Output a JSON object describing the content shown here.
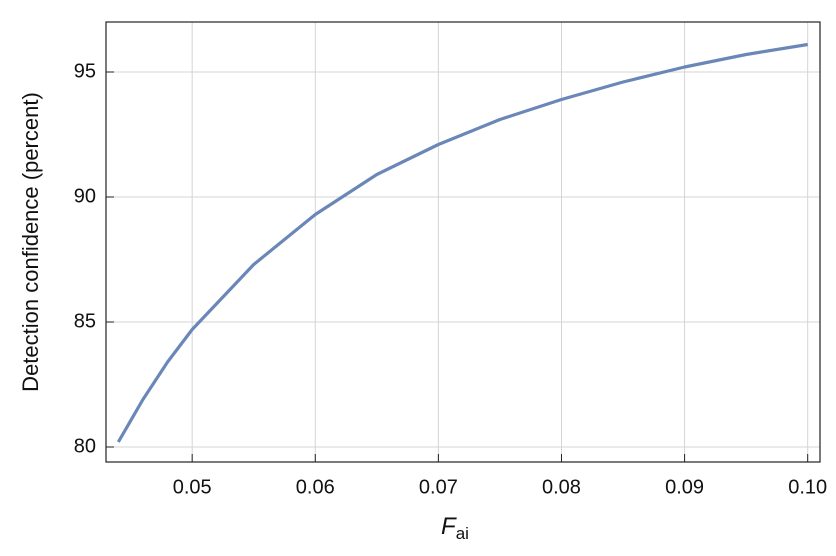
{
  "chart_data": {
    "type": "line",
    "x_label": {
      "main": "F",
      "sub": "ai"
    },
    "y_label": "Detection confidence (percent)",
    "x": [
      0.044,
      0.046,
      0.048,
      0.05,
      0.055,
      0.06,
      0.065,
      0.07,
      0.075,
      0.08,
      0.085,
      0.09,
      0.095,
      0.1
    ],
    "series": [
      {
        "color": "#6a87b8",
        "values": [
          80.2,
          81.9,
          83.4,
          84.7,
          87.3,
          89.3,
          90.9,
          92.1,
          93.1,
          93.9,
          94.6,
          95.2,
          95.7,
          96.1
        ]
      }
    ],
    "xlim": [
      0.043,
      0.101
    ],
    "ylim": [
      79.4,
      97
    ],
    "xticks": [
      0.05,
      0.06,
      0.07,
      0.08,
      0.09,
      {
        "value": 0.1,
        "label": "0.10"
      }
    ],
    "yticks": [
      80,
      85,
      90,
      95
    ],
    "grid": true
  }
}
